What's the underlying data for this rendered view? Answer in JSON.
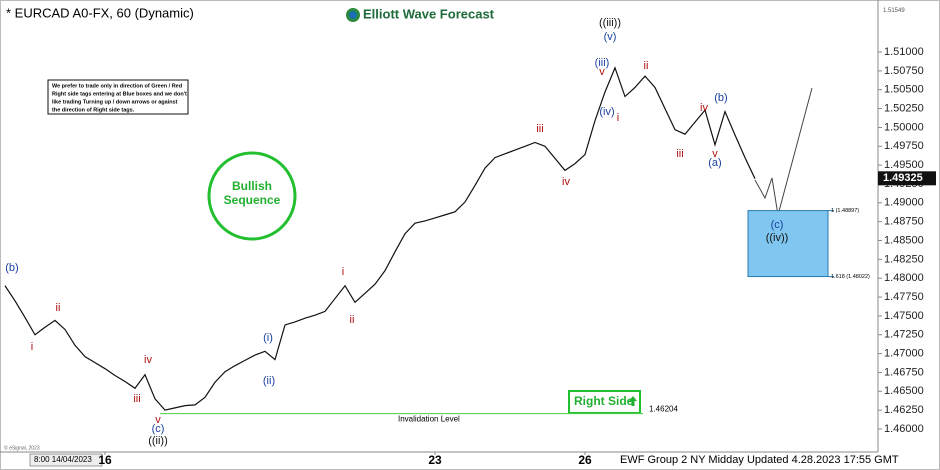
{
  "chart_data": {
    "type": "line",
    "title": "* EURCAD A0-FX, 60 (Dynamic)",
    "brand": "Elliott Wave Forecast",
    "note": [
      "We prefer to trade only in direction of Green / Red",
      "Right side tags entering at Blue boxes and we don't",
      "like trading Turning up / down arrows or against",
      "the direction of Right side tags."
    ],
    "sequence_label": [
      "Bullish",
      "Sequence"
    ],
    "right_side_label": "Right Side",
    "invalidation": {
      "value": 1.46204,
      "text": "Invalidation Level"
    },
    "target_levels": [
      {
        "value": 1.48897,
        "label": "1 (1.48897)"
      },
      {
        "value": 1.48022,
        "label": "1.618 (1.48022)"
      }
    ],
    "last_price": {
      "value": 1.49325,
      "label": "1.49325"
    },
    "top_price": {
      "value": 1.51549,
      "label": "1.51549"
    },
    "date_box": "8:00 14/04/2023",
    "footer": "EWF Group 2 NY Midday Updated 4.28.2023 17:55 GMT",
    "credit": "© eSignal, 2023",
    "categories": [
      null,
      null,
      null,
      null,
      null,
      null,
      null,
      null,
      null,
      null,
      "16",
      null,
      null,
      null,
      null,
      null,
      null,
      null,
      null,
      null,
      null,
      null,
      null,
      null,
      null,
      null,
      null,
      null,
      null,
      null,
      null,
      null,
      null,
      null,
      null,
      null,
      null,
      null,
      null,
      null,
      null,
      null,
      null,
      "23",
      null,
      null,
      null,
      null,
      null,
      null,
      null,
      null,
      null,
      null,
      null,
      null,
      null,
      null,
      "26",
      null,
      null,
      null,
      null,
      null,
      null,
      null,
      null,
      null,
      null,
      null,
      null,
      null,
      null,
      null,
      null,
      null
    ],
    "series": [
      {
        "name": "EURCAD A0-FX",
        "color": "#111111",
        "values": [
          1.479,
          1.477,
          1.4748,
          1.4725,
          1.4735,
          1.4744,
          1.4732,
          1.4711,
          1.4696,
          1.4688,
          1.468,
          1.4671,
          1.4663,
          1.4654,
          1.4672,
          1.464,
          1.4625,
          1.4628,
          1.4631,
          1.4632,
          1.4642,
          1.4662,
          1.4676,
          1.4684,
          1.4691,
          1.4698,
          1.4703,
          1.4692,
          1.4738,
          1.4742,
          1.4747,
          1.4751,
          1.4756,
          1.4773,
          1.479,
          1.4768,
          1.478,
          1.4792,
          1.481,
          1.4835,
          1.4859,
          1.4873,
          1.4876,
          1.488,
          1.4884,
          1.4888,
          1.4901,
          1.4923,
          1.4946,
          1.496,
          1.4965,
          1.497,
          1.4975,
          1.498,
          1.4975,
          1.4959,
          1.4943,
          1.4952,
          1.4964,
          1.5009,
          1.5047,
          1.5079,
          1.5041,
          1.5053,
          1.5068,
          1.5053,
          1.5025,
          1.4997,
          1.4991,
          1.5007,
          1.5023,
          1.4977,
          1.5021,
          1.499,
          1.496,
          1.4932
        ]
      }
    ],
    "ylim": [
      1.45655,
      1.51584
    ],
    "yticks": [
      {
        "value": 1.46,
        "label": "1.46000"
      },
      {
        "value": 1.4625,
        "label": "1.46250"
      },
      {
        "value": 1.465,
        "label": "1.46500"
      },
      {
        "value": 1.4675,
        "label": "1.46750"
      },
      {
        "value": 1.47,
        "label": "1.47000"
      },
      {
        "value": 1.4725,
        "label": "1.47250"
      },
      {
        "value": 1.475,
        "label": "1.47500"
      },
      {
        "value": 1.4775,
        "label": "1.47750"
      },
      {
        "value": 1.48,
        "label": "1.48000"
      },
      {
        "value": 1.4825,
        "label": "1.48250"
      },
      {
        "value": 1.485,
        "label": "1.48500"
      },
      {
        "value": 1.4875,
        "label": "1.48750"
      },
      {
        "value": 1.49,
        "label": "1.49000"
      },
      {
        "value": 1.4925,
        "label": "1.49250"
      },
      {
        "value": 1.495,
        "label": "1.49500"
      },
      {
        "value": 1.4975,
        "label": "1.49750"
      },
      {
        "value": 1.5,
        "label": "1.50000"
      },
      {
        "value": 1.5025,
        "label": "1.50250"
      },
      {
        "value": 1.505,
        "label": "1.50500"
      },
      {
        "value": 1.5075,
        "label": "1.50750"
      },
      {
        "value": 1.51,
        "label": "1.51000"
      }
    ],
    "wave_labels": [
      {
        "text": "(b)",
        "color": "#1a3fa0"
      },
      {
        "text": "i",
        "color": "#b01010"
      },
      {
        "text": "ii",
        "color": "#b01010"
      },
      {
        "text": "iii",
        "color": "#b01010"
      },
      {
        "text": "iv",
        "color": "#b01010"
      },
      {
        "text": "v",
        "color": "#b01010"
      },
      {
        "text": "(c)",
        "color": "#1a3fa0"
      },
      {
        "text": "((ii))",
        "color": "#111111"
      },
      {
        "text": "(i)",
        "color": "#1a3fa0"
      },
      {
        "text": "(ii)",
        "color": "#1a3fa0"
      },
      {
        "text": "i",
        "color": "#b01010"
      },
      {
        "text": "ii",
        "color": "#b01010"
      },
      {
        "text": "iii",
        "color": "#b01010"
      },
      {
        "text": "iv",
        "color": "#b01010"
      },
      {
        "text": "v",
        "color": "#b01010"
      },
      {
        "text": "(iii)",
        "color": "#1a3fa0"
      },
      {
        "text": "(iv)",
        "color": "#1a3fa0"
      },
      {
        "text": "(v)",
        "color": "#1a3fa0"
      },
      {
        "text": "((iii))",
        "color": "#111111"
      },
      {
        "text": "i",
        "color": "#b01010"
      },
      {
        "text": "ii",
        "color": "#b01010"
      },
      {
        "text": "iii",
        "color": "#b01010"
      },
      {
        "text": "iv",
        "color": "#b01010"
      },
      {
        "text": "v",
        "color": "#b01010"
      },
      {
        "text": "(a)",
        "color": "#1a3fa0"
      },
      {
        "text": "(b)",
        "color": "#1a3fa0"
      },
      {
        "text": "(c)",
        "color": "#1a3fa0"
      },
      {
        "text": "((iv))",
        "color": "#111111"
      }
    ]
  }
}
